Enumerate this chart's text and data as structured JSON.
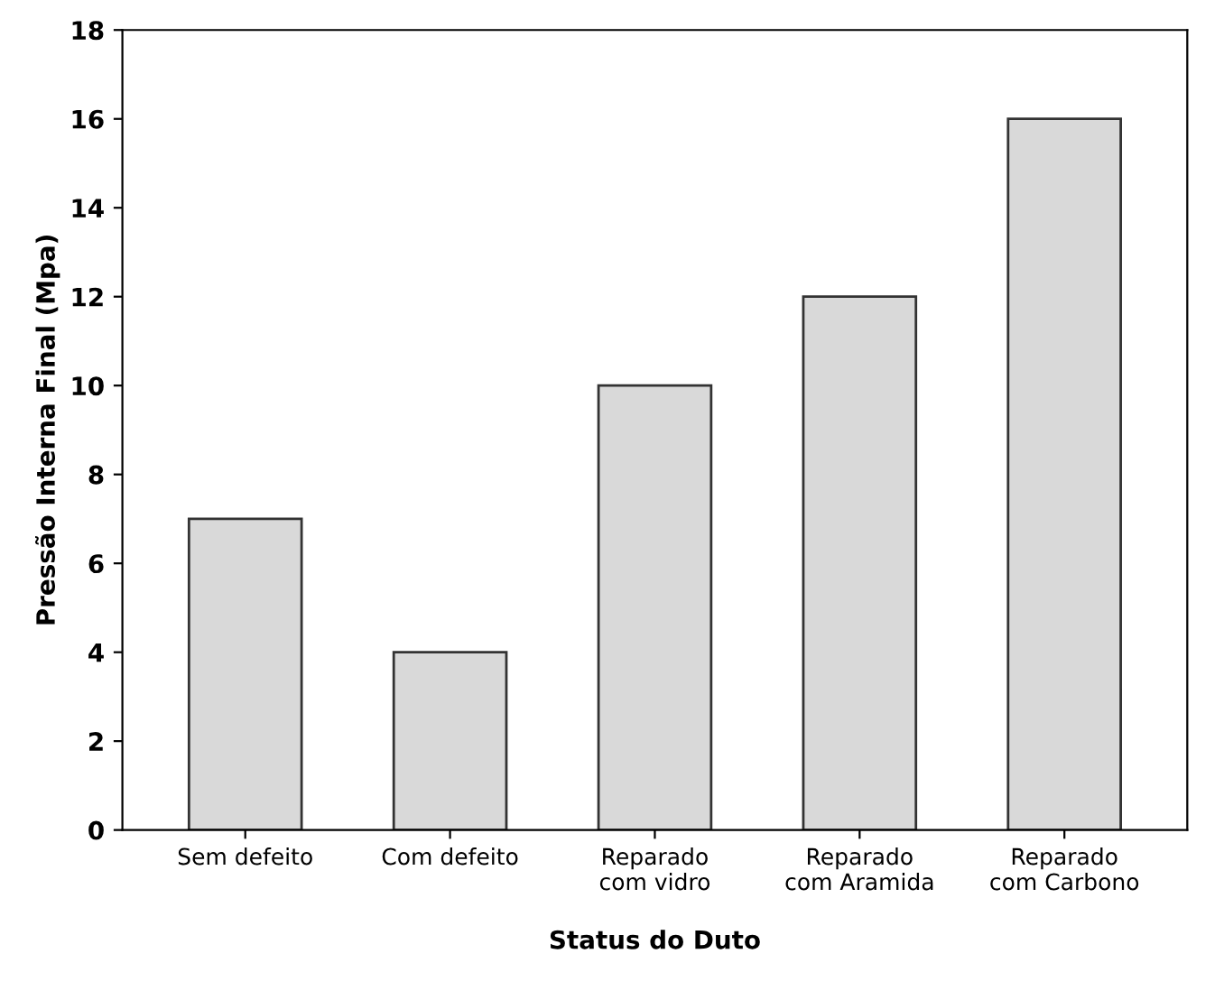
{
  "chart_data": {
    "type": "bar",
    "xlabel": "Status do Duto",
    "ylabel": "Pressão Interna Final (Mpa)",
    "categories": [
      "Sem defeito",
      "Com defeito",
      "Reparado\ncom vidro",
      "Reparado\ncom Aramida",
      "Reparado\ncom Carbono"
    ],
    "values": [
      7,
      4,
      10,
      12,
      16
    ],
    "color": "#d9d9d9",
    "ylim": [
      0,
      18
    ],
    "yticks": [
      0,
      2,
      4,
      6,
      8,
      10,
      12,
      14,
      16,
      18
    ],
    "grid": false
  }
}
